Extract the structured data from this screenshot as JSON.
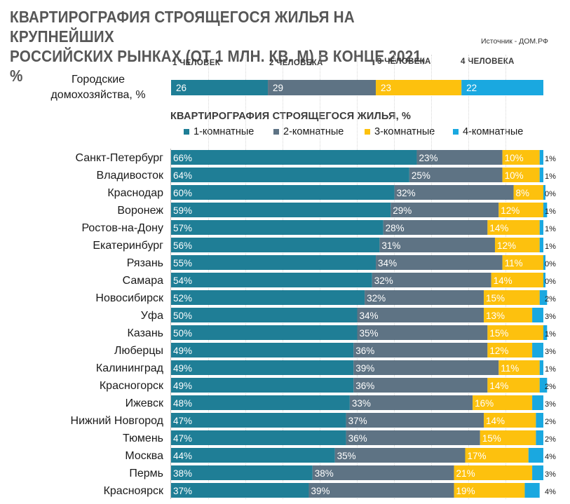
{
  "header": {
    "title_line1": "КВАРТИРОГРАФИЯ СТРОЯЩЕГОСЯ ЖИЛЬЯ НА КРУПНЕЙШИХ",
    "title_line2": "РОССИЙСКИХ РЫНКАХ (ОТ 1 МЛН. КВ. М) В КОНЦЕ 2021, %",
    "source": "Источник - ДОМ.РФ"
  },
  "colors": {
    "c1": "#1f7e96",
    "c2": "#5e7384",
    "c3": "#fdc10e",
    "c4": "#1aa8e0"
  },
  "households": {
    "category_line1": "Городские",
    "category_line2": "домохозяйства, %",
    "labels": [
      "1 ЧЕЛОВЕК",
      "2 ЧЕЛОВЕКА",
      "3 ЧЕЛОВЕКА",
      "4 ЧЕЛОВЕКА"
    ],
    "values": [
      26,
      29,
      23,
      22
    ]
  },
  "section_title": "КВАРТИРОГРАФИЯ СТРОЯЩЕГОСЯ ЖИЛЬЯ, %",
  "legend": [
    "1-комнатные",
    "2-комнатные",
    "3-комнатные",
    "4-комнатные"
  ],
  "chart_data": {
    "type": "bar",
    "orientation": "horizontal",
    "stacked": true,
    "xlim": [
      0,
      100
    ],
    "categories": [
      "Санкт-Петербург",
      "Владивосток",
      "Краснодар",
      "Воронеж",
      "Ростов-на-Дону",
      "Екатеринбург",
      "Рязань",
      "Самара",
      "Новосибирск",
      "Уфа",
      "Казань",
      "Люберцы",
      "Калининград",
      "Красногорск",
      "Ижевск",
      "Нижний Новгород",
      "Тюмень",
      "Москва",
      "Пермь",
      "Красноярск"
    ],
    "series": [
      {
        "name": "1-комнатные",
        "values": [
          66,
          64,
          60,
          59,
          57,
          56,
          55,
          54,
          52,
          50,
          50,
          49,
          49,
          49,
          48,
          47,
          47,
          44,
          38,
          37
        ]
      },
      {
        "name": "2-комнатные",
        "values": [
          23,
          25,
          32,
          29,
          28,
          31,
          34,
          32,
          32,
          34,
          35,
          36,
          39,
          36,
          33,
          37,
          36,
          35,
          38,
          39
        ]
      },
      {
        "name": "3-комнатные",
        "values": [
          10,
          10,
          8,
          12,
          14,
          12,
          11,
          14,
          15,
          13,
          15,
          12,
          11,
          14,
          16,
          14,
          15,
          17,
          21,
          19
        ]
      },
      {
        "name": "4-комнатные",
        "values": [
          1,
          1,
          0,
          1,
          1,
          1,
          0,
          0,
          2,
          3,
          1,
          3,
          1,
          2,
          3,
          2,
          2,
          4,
          3,
          4
        ]
      }
    ]
  }
}
